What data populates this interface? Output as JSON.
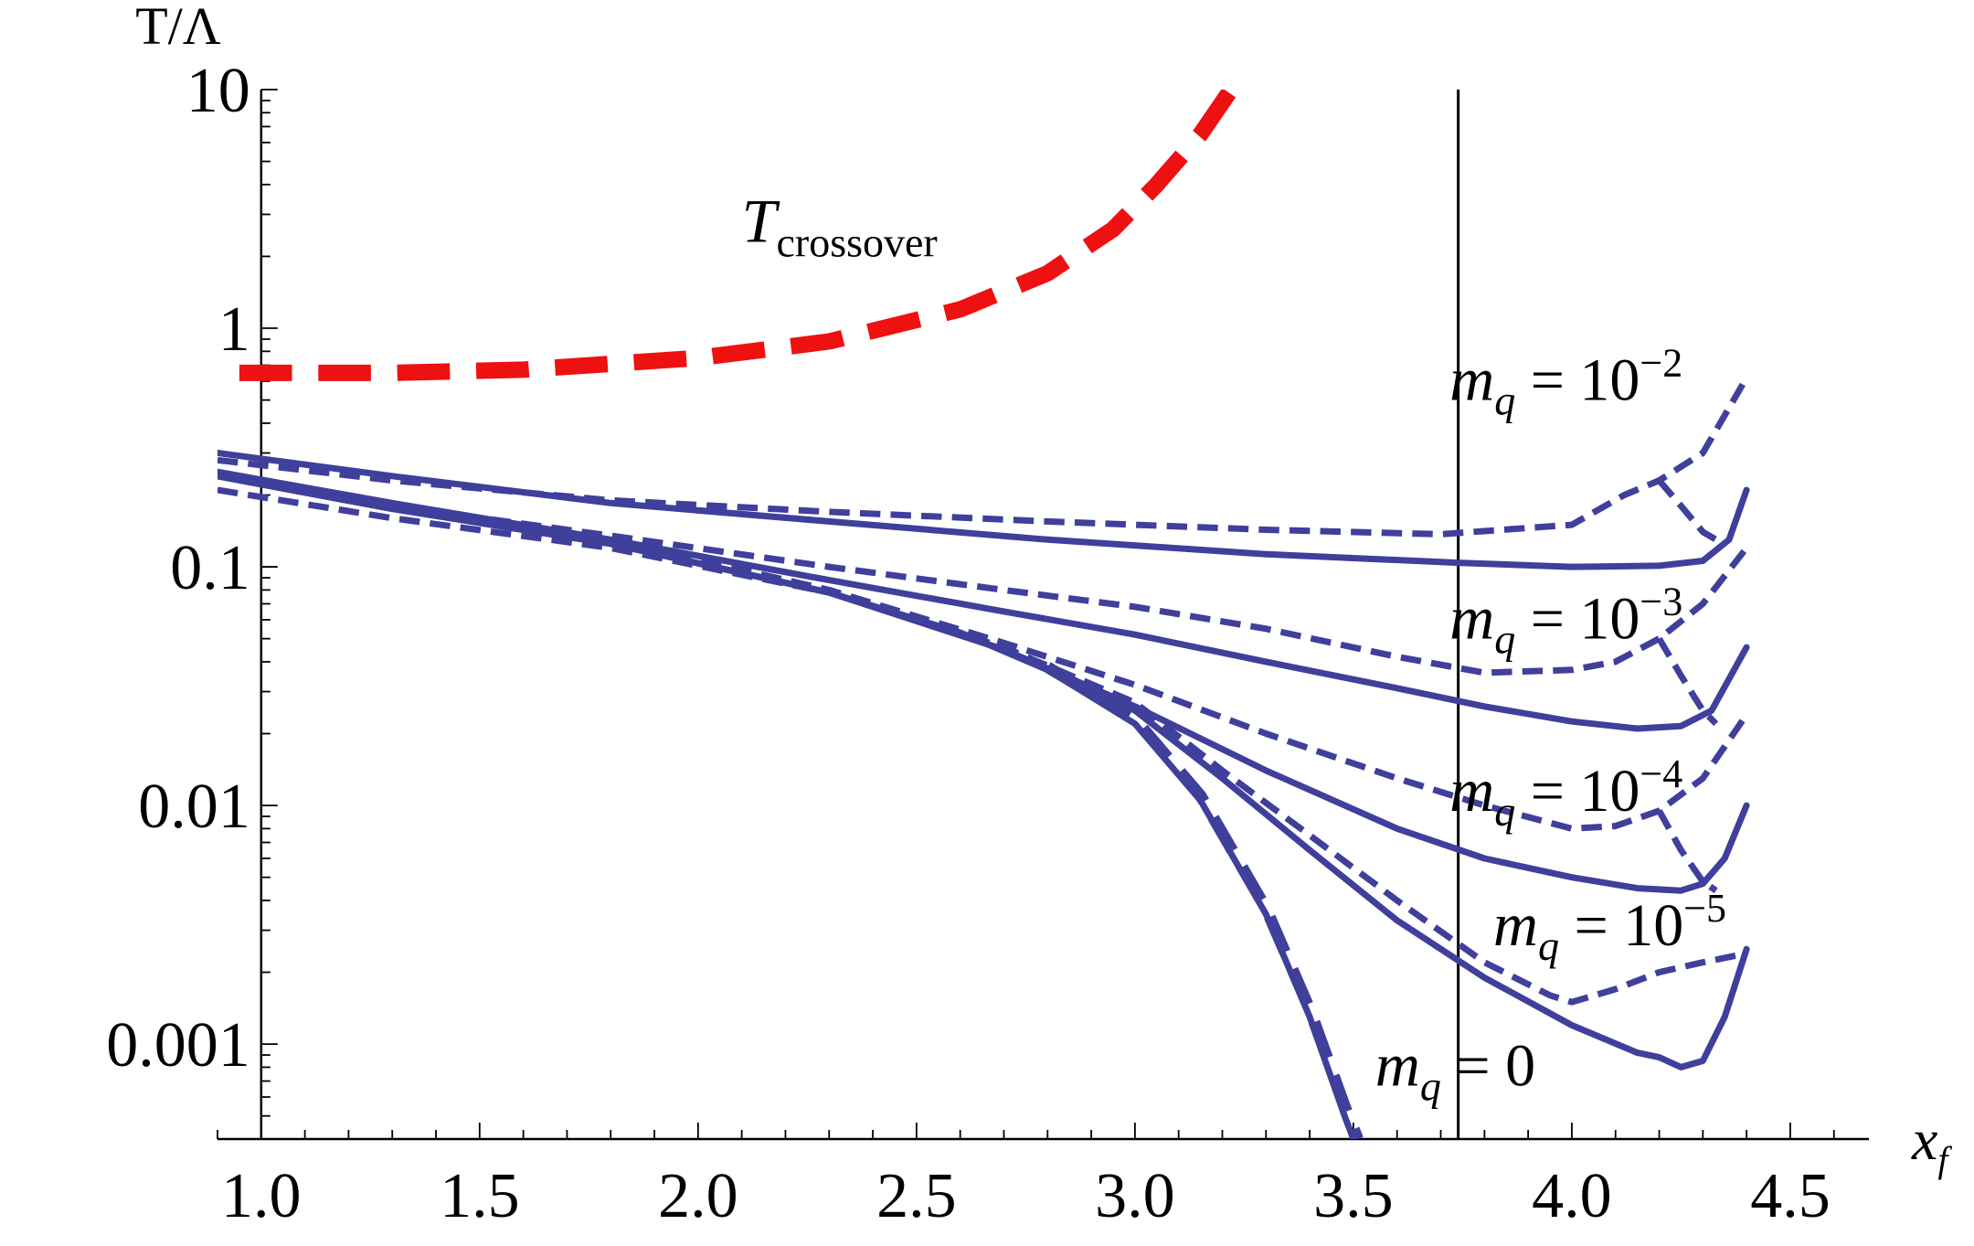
{
  "chart_data": {
    "type": "line",
    "xlabel": "x",
    "xlabel_sub": "f",
    "ylabel": "T/Λ",
    "yscale": "log",
    "xlim": [
      0.9,
      4.68
    ],
    "ylim": [
      0.0004,
      10
    ],
    "xticks": [
      {
        "v": 1.0,
        "label": "1.0"
      },
      {
        "v": 1.5,
        "label": "1.5"
      },
      {
        "v": 2.0,
        "label": "2.0"
      },
      {
        "v": 2.5,
        "label": "2.5"
      },
      {
        "v": 3.0,
        "label": "3.0"
      },
      {
        "v": 3.5,
        "label": "3.5"
      },
      {
        "v": 4.0,
        "label": "4.0"
      },
      {
        "v": 4.5,
        "label": "4.5"
      }
    ],
    "yticks": [
      {
        "v": 0.001,
        "label": "0.001"
      },
      {
        "v": 0.01,
        "label": "0.01"
      },
      {
        "v": 0.1,
        "label": "0.1"
      },
      {
        "v": 1,
        "label": "1"
      },
      {
        "v": 10,
        "label": "10"
      }
    ],
    "vertical_line_x": 3.74,
    "series": [
      {
        "style": "dashed",
        "color": "#ee1111",
        "width": 18,
        "points": [
          [
            0.95,
            0.65
          ],
          [
            1.3,
            0.65
          ],
          [
            1.6,
            0.67
          ],
          [
            2.0,
            0.75
          ],
          [
            2.3,
            0.88
          ],
          [
            2.6,
            1.2
          ],
          [
            2.8,
            1.7
          ],
          [
            2.95,
            2.6
          ],
          [
            3.05,
            4.0
          ],
          [
            3.15,
            6.5
          ],
          [
            3.22,
            10.0
          ]
        ]
      },
      {
        "style": "solid",
        "color": "#3f3f9c",
        "width": 7,
        "points": [
          [
            0.9,
            0.3
          ],
          [
            1.3,
            0.24
          ],
          [
            1.8,
            0.185
          ],
          [
            2.3,
            0.155
          ],
          [
            2.8,
            0.13
          ],
          [
            3.3,
            0.113
          ],
          [
            3.74,
            0.104
          ],
          [
            4.0,
            0.1
          ],
          [
            4.2,
            0.101
          ],
          [
            4.3,
            0.106
          ],
          [
            4.36,
            0.13
          ],
          [
            4.4,
            0.21
          ]
        ]
      },
      {
        "style": "dashed",
        "color": "#3f3f9c",
        "width": 7,
        "points": [
          [
            0.9,
            0.28
          ],
          [
            1.3,
            0.23
          ],
          [
            1.8,
            0.19
          ],
          [
            2.3,
            0.17
          ],
          [
            2.8,
            0.155
          ],
          [
            3.3,
            0.143
          ],
          [
            3.7,
            0.137
          ],
          [
            4.0,
            0.15
          ],
          [
            4.12,
            0.2
          ],
          [
            4.2,
            0.23
          ],
          [
            4.3,
            0.3
          ],
          [
            4.4,
            0.62
          ]
        ]
      },
      {
        "style": "dashed",
        "color": "#3f3f9c",
        "width": 7,
        "points": [
          [
            4.2,
            0.23
          ],
          [
            4.25,
            0.18
          ],
          [
            4.3,
            0.14
          ],
          [
            4.33,
            0.13
          ]
        ]
      },
      {
        "style": "solid",
        "color": "#3f3f9c",
        "width": 7,
        "points": [
          [
            0.9,
            0.25
          ],
          [
            1.3,
            0.185
          ],
          [
            1.8,
            0.13
          ],
          [
            2.3,
            0.088
          ],
          [
            2.7,
            0.065
          ],
          [
            3.0,
            0.052
          ],
          [
            3.3,
            0.04
          ],
          [
            3.6,
            0.031
          ],
          [
            3.8,
            0.026
          ],
          [
            4.0,
            0.0225
          ],
          [
            4.15,
            0.021
          ],
          [
            4.25,
            0.0215
          ],
          [
            4.32,
            0.025
          ],
          [
            4.4,
            0.046
          ]
        ]
      },
      {
        "style": "dashed",
        "color": "#3f3f9c",
        "width": 7,
        "points": [
          [
            0.9,
            0.24
          ],
          [
            1.3,
            0.18
          ],
          [
            1.8,
            0.135
          ],
          [
            2.3,
            0.1
          ],
          [
            2.7,
            0.08
          ],
          [
            3.0,
            0.068
          ],
          [
            3.3,
            0.055
          ],
          [
            3.6,
            0.042
          ],
          [
            3.8,
            0.036
          ],
          [
            4.0,
            0.037
          ],
          [
            4.1,
            0.04
          ],
          [
            4.2,
            0.05
          ],
          [
            4.3,
            0.07
          ],
          [
            4.4,
            0.12
          ]
        ]
      },
      {
        "style": "dashed",
        "color": "#3f3f9c",
        "width": 7,
        "points": [
          [
            4.2,
            0.05
          ],
          [
            4.25,
            0.035
          ],
          [
            4.3,
            0.025
          ],
          [
            4.33,
            0.022
          ]
        ]
      },
      {
        "style": "solid",
        "color": "#3f3f9c",
        "width": 7,
        "points": [
          [
            0.9,
            0.24
          ],
          [
            1.3,
            0.175
          ],
          [
            1.8,
            0.125
          ],
          [
            2.3,
            0.078
          ],
          [
            2.7,
            0.045
          ],
          [
            3.0,
            0.026
          ],
          [
            3.3,
            0.014
          ],
          [
            3.6,
            0.008
          ],
          [
            3.8,
            0.006
          ],
          [
            4.0,
            0.005
          ],
          [
            4.15,
            0.0045
          ],
          [
            4.25,
            0.0044
          ],
          [
            4.3,
            0.0047
          ],
          [
            4.35,
            0.006
          ],
          [
            4.4,
            0.01
          ]
        ]
      },
      {
        "style": "dashed",
        "color": "#3f3f9c",
        "width": 7,
        "points": [
          [
            0.9,
            0.24
          ],
          [
            1.3,
            0.175
          ],
          [
            1.8,
            0.13
          ],
          [
            2.3,
            0.08
          ],
          [
            2.7,
            0.048
          ],
          [
            3.0,
            0.032
          ],
          [
            3.3,
            0.02
          ],
          [
            3.6,
            0.013
          ],
          [
            3.8,
            0.01
          ],
          [
            4.0,
            0.008
          ],
          [
            4.1,
            0.0082
          ],
          [
            4.2,
            0.0095
          ],
          [
            4.3,
            0.013
          ],
          [
            4.4,
            0.024
          ]
        ]
      },
      {
        "style": "dashed",
        "color": "#3f3f9c",
        "width": 7,
        "points": [
          [
            4.2,
            0.0095
          ],
          [
            4.25,
            0.0065
          ],
          [
            4.3,
            0.0048
          ],
          [
            4.33,
            0.0044
          ]
        ]
      },
      {
        "style": "solid",
        "color": "#3f3f9c",
        "width": 7,
        "points": [
          [
            0.9,
            0.24
          ],
          [
            1.3,
            0.175
          ],
          [
            1.8,
            0.125
          ],
          [
            2.3,
            0.078
          ],
          [
            2.7,
            0.045
          ],
          [
            3.0,
            0.025
          ],
          [
            3.2,
            0.013
          ],
          [
            3.4,
            0.0065
          ],
          [
            3.6,
            0.0033
          ],
          [
            3.8,
            0.0019
          ],
          [
            4.0,
            0.0012
          ],
          [
            4.15,
            0.00092
          ],
          [
            4.2,
            0.00088
          ],
          [
            4.25,
            0.0008
          ],
          [
            4.3,
            0.00085
          ],
          [
            4.35,
            0.0013
          ],
          [
            4.4,
            0.0025
          ]
        ]
      },
      {
        "style": "dashed",
        "color": "#3f3f9c",
        "width": 7,
        "points": [
          [
            0.9,
            0.21
          ],
          [
            1.3,
            0.16
          ],
          [
            1.8,
            0.12
          ],
          [
            2.3,
            0.078
          ],
          [
            2.7,
            0.046
          ],
          [
            3.0,
            0.027
          ],
          [
            3.2,
            0.014
          ],
          [
            3.4,
            0.0075
          ],
          [
            3.6,
            0.004
          ],
          [
            3.8,
            0.0022
          ],
          [
            3.95,
            0.0016
          ],
          [
            4.0,
            0.0015
          ],
          [
            4.1,
            0.0017
          ],
          [
            4.2,
            0.002
          ],
          [
            4.3,
            0.0022
          ],
          [
            4.4,
            0.0024
          ]
        ]
      },
      {
        "style": "solid",
        "color": "#3f3f9c",
        "width": 7,
        "points": [
          [
            0.9,
            0.24
          ],
          [
            1.3,
            0.175
          ],
          [
            1.8,
            0.125
          ],
          [
            2.3,
            0.078
          ],
          [
            2.6,
            0.053
          ],
          [
            2.8,
            0.037
          ],
          [
            3.0,
            0.022
          ],
          [
            3.15,
            0.0105
          ],
          [
            3.3,
            0.0035
          ],
          [
            3.4,
            0.0013
          ],
          [
            3.48,
            0.0005
          ],
          [
            3.5,
            0.0004
          ]
        ]
      },
      {
        "style": "dashed",
        "color": "#3f3f9c",
        "width": 13,
        "points": [
          [
            2.8,
            0.038
          ],
          [
            3.0,
            0.023
          ],
          [
            3.15,
            0.011
          ],
          [
            3.3,
            0.0037
          ],
          [
            3.4,
            0.0014
          ],
          [
            3.48,
            0.00055
          ],
          [
            3.51,
            0.0004
          ]
        ]
      }
    ],
    "annotations": [
      {
        "main": "T",
        "sub": "crossover",
        "ax": 2.1,
        "ay": 2.3
      },
      {
        "main": "m",
        "sub": "q",
        "rest": " = 10",
        "sup": "−2",
        "ax": 3.72,
        "ay": 0.5
      },
      {
        "main": "m",
        "sub": "q",
        "rest": " = 10",
        "sup": "−3",
        "ax": 3.72,
        "ay": 0.05
      },
      {
        "main": "m",
        "sub": "q",
        "rest": " = 10",
        "sup": "−4",
        "ax": 3.72,
        "ay": 0.0095
      },
      {
        "main": "m",
        "sub": "q",
        "rest": " = 10",
        "sup": "−5",
        "ax": 3.82,
        "ay": 0.0026
      },
      {
        "main": "m",
        "sub": "q",
        "rest": " = 0",
        "ax": 3.55,
        "ay": 0.00067
      }
    ]
  }
}
